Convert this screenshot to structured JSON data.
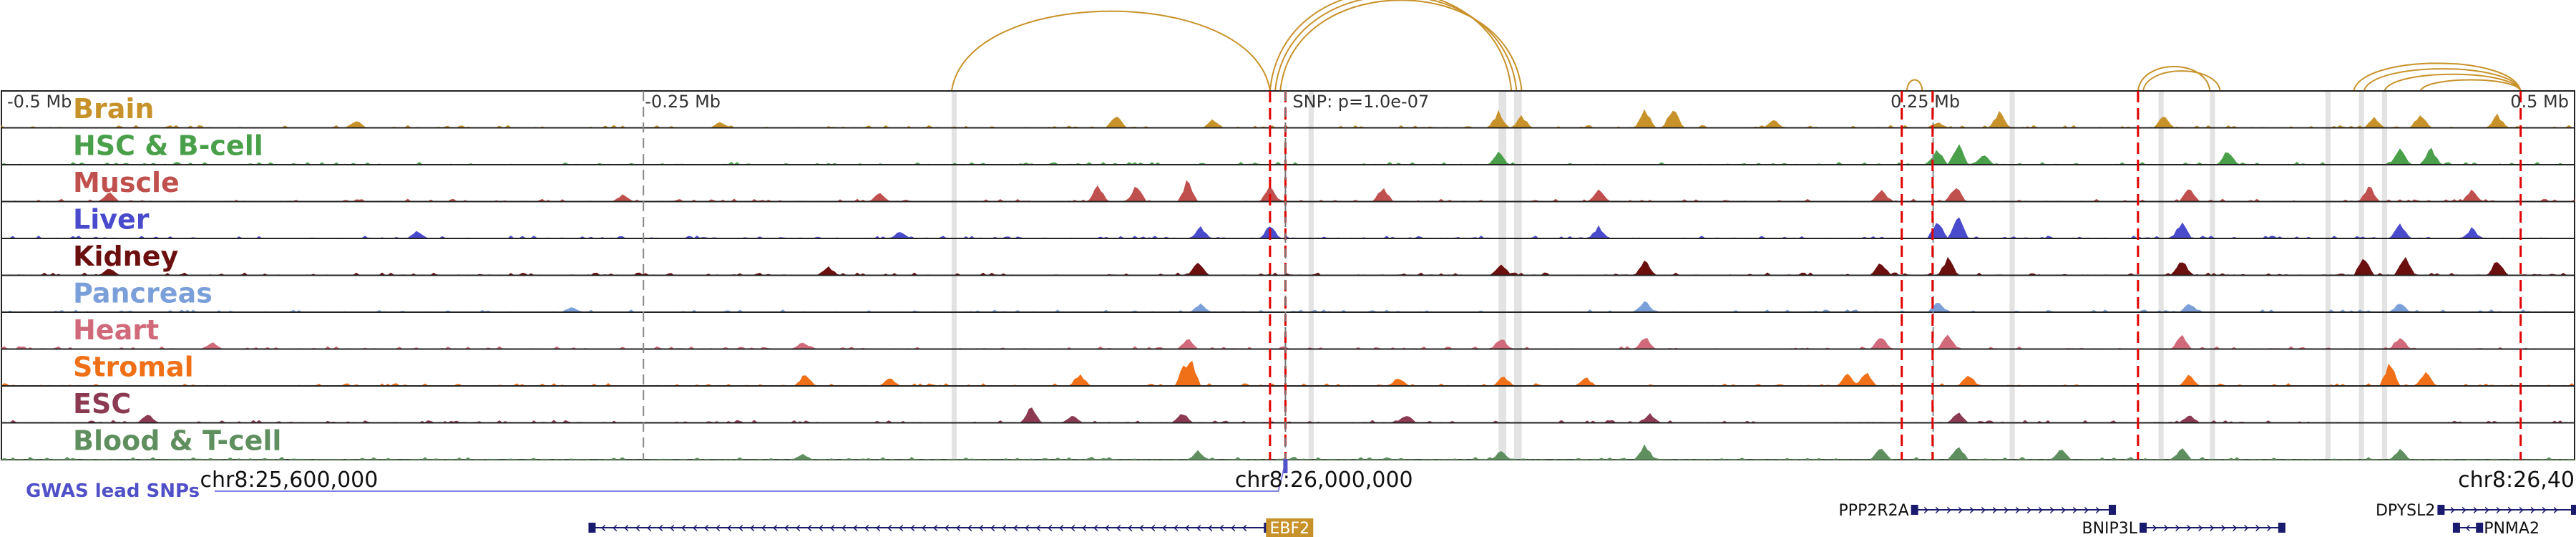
{
  "chart_data": {
    "type": "area",
    "title": "",
    "focus_snp_label": "SNP: p=1.0e-07",
    "ruler": {
      "labels": [
        "-0.5 Mb",
        "-0.25 Mb",
        "0.25 Mb",
        "0.5 Mb"
      ],
      "positions_bp": [
        25678000,
        25928000,
        26428000,
        26678000
      ]
    },
    "genomic_range": {
      "chrom": "chr8",
      "start": 25678000,
      "end": 26680000
    },
    "focus_snp_bp": 26178000,
    "gwas_label": "GWAS lead SNPs",
    "coord_labels": [
      "chr8:25,600,000",
      "chr8:26,000,000",
      "chr8:26,40"
    ],
    "coord_positions_bp": [
      25790000,
      26193000,
      26598000
    ],
    "tracks": [
      {
        "name": "Brain",
        "color": "#c8922a",
        "peaks": [
          [
            25816000,
            0.28
          ],
          [
            25958000,
            0.22
          ],
          [
            26112000,
            0.45
          ],
          [
            26150000,
            0.3
          ],
          [
            26261000,
            0.55
          ],
          [
            26270000,
            0.4
          ],
          [
            26318000,
            0.62
          ],
          [
            26329000,
            0.75
          ],
          [
            26368000,
            0.3
          ],
          [
            26432000,
            0.2
          ],
          [
            26456000,
            0.55
          ],
          [
            26520000,
            0.4
          ],
          [
            26602000,
            0.35
          ],
          [
            26620000,
            0.5
          ],
          [
            26650000,
            0.45
          ]
        ]
      },
      {
        "name": "HSC & B-cell",
        "color": "#4aa04a",
        "peaks": [
          [
            26261000,
            0.45
          ],
          [
            26432000,
            0.55
          ],
          [
            26440000,
            0.7
          ],
          [
            26450000,
            0.4
          ],
          [
            26545000,
            0.5
          ],
          [
            26612000,
            0.65
          ],
          [
            26624000,
            0.55
          ]
        ]
      },
      {
        "name": "Muscle",
        "color": "#c0504d",
        "peaks": [
          [
            25720000,
            0.3
          ],
          [
            25920000,
            0.25
          ],
          [
            26020000,
            0.3
          ],
          [
            26105000,
            0.55
          ],
          [
            26120000,
            0.55
          ],
          [
            26140000,
            0.75
          ],
          [
            26172000,
            0.55
          ],
          [
            26216000,
            0.5
          ],
          [
            26300000,
            0.45
          ],
          [
            26410000,
            0.4
          ],
          [
            26439000,
            0.55
          ],
          [
            26530000,
            0.5
          ],
          [
            26600000,
            0.55
          ],
          [
            26640000,
            0.4
          ]
        ]
      },
      {
        "name": "Liver",
        "color": "#4a4acd",
        "peaks": [
          [
            25840000,
            0.25
          ],
          [
            26028000,
            0.25
          ],
          [
            26145000,
            0.4
          ],
          [
            26172000,
            0.45
          ],
          [
            26300000,
            0.4
          ],
          [
            26432000,
            0.65
          ],
          [
            26440000,
            0.8
          ],
          [
            26527000,
            0.6
          ],
          [
            26612000,
            0.55
          ],
          [
            26640000,
            0.35
          ]
        ]
      },
      {
        "name": "Kidney",
        "color": "#6b0f0f",
        "peaks": [
          [
            25720000,
            0.25
          ],
          [
            26000000,
            0.3
          ],
          [
            26144000,
            0.5
          ],
          [
            26262000,
            0.4
          ],
          [
            26318000,
            0.55
          ],
          [
            26410000,
            0.45
          ],
          [
            26436000,
            0.6
          ],
          [
            26527000,
            0.55
          ],
          [
            26598000,
            0.7
          ],
          [
            26614000,
            0.75
          ],
          [
            26650000,
            0.55
          ]
        ]
      },
      {
        "name": "Pancreas",
        "color": "#7b9fd9",
        "peaks": [
          [
            25900000,
            0.2
          ],
          [
            26145000,
            0.3
          ],
          [
            26318000,
            0.45
          ],
          [
            26432000,
            0.4
          ],
          [
            26530000,
            0.3
          ],
          [
            26612000,
            0.35
          ]
        ]
      },
      {
        "name": "Heart",
        "color": "#d06a7a",
        "peaks": [
          [
            25760000,
            0.25
          ],
          [
            25990000,
            0.25
          ],
          [
            26140000,
            0.35
          ],
          [
            26262000,
            0.4
          ],
          [
            26318000,
            0.45
          ],
          [
            26410000,
            0.5
          ],
          [
            26436000,
            0.55
          ],
          [
            26527000,
            0.5
          ],
          [
            26612000,
            0.45
          ]
        ]
      },
      {
        "name": "Stromal",
        "color": "#f07018",
        "peaks": [
          [
            25991000,
            0.45
          ],
          [
            26024000,
            0.3
          ],
          [
            26098000,
            0.45
          ],
          [
            26139000,
            0.85
          ],
          [
            26141000,
            0.95
          ],
          [
            26222000,
            0.3
          ],
          [
            26263000,
            0.35
          ],
          [
            26295000,
            0.3
          ],
          [
            26397000,
            0.45
          ],
          [
            26404000,
            0.5
          ],
          [
            26444000,
            0.45
          ],
          [
            26530000,
            0.4
          ],
          [
            26608000,
            0.85
          ],
          [
            26622000,
            0.55
          ]
        ]
      },
      {
        "name": "ESC",
        "color": "#8c3a52",
        "peaks": [
          [
            25735000,
            0.3
          ],
          [
            26079000,
            0.55
          ],
          [
            26095000,
            0.25
          ],
          [
            26138000,
            0.35
          ],
          [
            26225000,
            0.3
          ],
          [
            26320000,
            0.3
          ],
          [
            26440000,
            0.35
          ],
          [
            26530000,
            0.3
          ]
        ]
      },
      {
        "name": "Blood & T-cell",
        "color": "#5f8f5f",
        "peaks": [
          [
            25990000,
            0.2
          ],
          [
            26144000,
            0.3
          ],
          [
            26262000,
            0.3
          ],
          [
            26318000,
            0.5
          ],
          [
            26410000,
            0.45
          ],
          [
            26440000,
            0.5
          ],
          [
            26480000,
            0.35
          ],
          [
            26527000,
            0.4
          ],
          [
            26612000,
            0.35
          ]
        ]
      }
    ],
    "highlight_regions_bp": [
      [
        26048000,
        26050000
      ],
      [
        26187000,
        26189000
      ],
      [
        26261000,
        26264000
      ],
      [
        26267000,
        26270000
      ],
      [
        26460000,
        26462000
      ],
      [
        26518000,
        26520000
      ],
      [
        26538000,
        26540000
      ],
      [
        26583000,
        26585000
      ],
      [
        26596000,
        26598000
      ],
      [
        26605000,
        26607000
      ]
    ],
    "gwas_snps_bp": [
      26172000,
      26178000,
      26418000,
      26430000,
      26510000,
      26659000
    ],
    "loops": [
      {
        "from": 26048000,
        "to": 26172000,
        "height": 0.72
      },
      {
        "from": 26172000,
        "to": 26266000,
        "height": 0.9
      },
      {
        "from": 26174000,
        "to": 26268000,
        "height": 0.86
      },
      {
        "from": 26176000,
        "to": 26270000,
        "height": 0.82
      },
      {
        "from": 26420000,
        "to": 26426000,
        "height": 0.1
      },
      {
        "from": 26510000,
        "to": 26538000,
        "height": 0.22
      },
      {
        "from": 26512000,
        "to": 26542000,
        "height": 0.18
      },
      {
        "from": 26594000,
        "to": 26659000,
        "height": 0.25
      },
      {
        "from": 26598000,
        "to": 26659000,
        "height": 0.2
      },
      {
        "from": 26606000,
        "to": 26659000,
        "height": 0.15
      },
      {
        "from": 26620000,
        "to": 26659000,
        "height": 0.1
      }
    ],
    "genes": [
      {
        "name": "EBF2",
        "start": 25908000,
        "end": 26171000,
        "strand": "-",
        "highlight": true,
        "row": 2
      },
      {
        "name": "PPP2R2A",
        "start": 26423000,
        "end": 26500000,
        "strand": "+",
        "highlight": false,
        "row": 1
      },
      {
        "name": "BNIP3L",
        "start": 26512000,
        "end": 26566000,
        "strand": "+",
        "highlight": false,
        "row": 2
      },
      {
        "name": "DPYSL2",
        "start": 26628000,
        "end": 26680000,
        "strand": "+",
        "highlight": false,
        "row": 1
      },
      {
        "name": "PNMA2",
        "start": 26634000,
        "end": 26643000,
        "strand": "-",
        "highlight": false,
        "row": 2
      }
    ],
    "colors": {
      "track_border": "#222222",
      "focus_line": "#e00000",
      "gwas_line": "#8080e0",
      "gwas_text": "#5050c8",
      "loop": "#c8922a",
      "highlight": "#cccccc",
      "gene": "#1a1a6e",
      "gene_highlight": "#c8922a"
    }
  }
}
